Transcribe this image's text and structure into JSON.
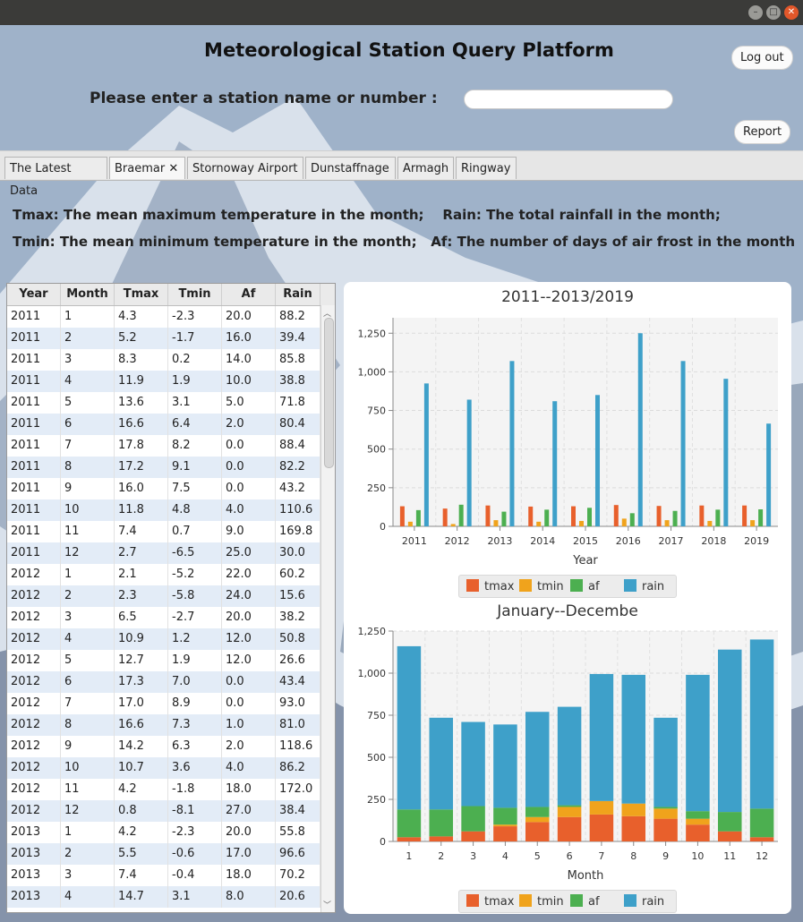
{
  "window": {
    "buttons": [
      "minimize",
      "maximize",
      "close"
    ]
  },
  "header": {
    "title": "Meteorological Station Query Platform",
    "prompt": "Please enter a station name or number :",
    "search_value": "",
    "logout_label": "Log out",
    "report_label": "Report"
  },
  "tabs": [
    {
      "label": "The Latest Data"
    },
    {
      "label": "Braemar",
      "active": true,
      "close": "✕"
    },
    {
      "label": "Stornoway Airport"
    },
    {
      "label": "Dunstaffnage"
    },
    {
      "label": "Armagh"
    },
    {
      "label": "Ringway"
    }
  ],
  "definitions": {
    "line1": "Tmax: The mean maximum temperature in the month;    Rain: The total rainfall in the month;",
    "line2": "Tmin: The mean minimum temperature in the month;   Af: The number of days of air frost in the month"
  },
  "table": {
    "columns": [
      "Year",
      "Month",
      "Tmax",
      "Tmin",
      "Af",
      "Rain"
    ],
    "rows": [
      [
        "2011",
        "1",
        "4.3",
        "-2.3",
        "20.0",
        "88.2"
      ],
      [
        "2011",
        "2",
        "5.2",
        "-1.7",
        "16.0",
        "39.4"
      ],
      [
        "2011",
        "3",
        "8.3",
        "0.2",
        "14.0",
        "85.8"
      ],
      [
        "2011",
        "4",
        "11.9",
        "1.9",
        "10.0",
        "38.8"
      ],
      [
        "2011",
        "5",
        "13.6",
        "3.1",
        "5.0",
        "71.8"
      ],
      [
        "2011",
        "6",
        "16.6",
        "6.4",
        "2.0",
        "80.4"
      ],
      [
        "2011",
        "7",
        "17.8",
        "8.2",
        "0.0",
        "88.4"
      ],
      [
        "2011",
        "8",
        "17.2",
        "9.1",
        "0.0",
        "82.2"
      ],
      [
        "2011",
        "9",
        "16.0",
        "7.5",
        "0.0",
        "43.2"
      ],
      [
        "2011",
        "10",
        "11.8",
        "4.8",
        "4.0",
        "110.6"
      ],
      [
        "2011",
        "11",
        "7.4",
        "0.7",
        "9.0",
        "169.8"
      ],
      [
        "2011",
        "12",
        "2.7",
        "-6.5",
        "25.0",
        "30.0"
      ],
      [
        "2012",
        "1",
        "2.1",
        "-5.2",
        "22.0",
        "60.2"
      ],
      [
        "2012",
        "2",
        "2.3",
        "-5.8",
        "24.0",
        "15.6"
      ],
      [
        "2012",
        "3",
        "6.5",
        "-2.7",
        "20.0",
        "38.2"
      ],
      [
        "2012",
        "4",
        "10.9",
        "1.2",
        "12.0",
        "50.8"
      ],
      [
        "2012",
        "5",
        "12.7",
        "1.9",
        "12.0",
        "26.6"
      ],
      [
        "2012",
        "6",
        "17.3",
        "7.0",
        "0.0",
        "43.4"
      ],
      [
        "2012",
        "7",
        "17.0",
        "8.9",
        "0.0",
        "93.0"
      ],
      [
        "2012",
        "8",
        "16.6",
        "7.3",
        "1.0",
        "81.0"
      ],
      [
        "2012",
        "9",
        "14.2",
        "6.3",
        "2.0",
        "118.6"
      ],
      [
        "2012",
        "10",
        "10.7",
        "3.6",
        "4.0",
        "86.2"
      ],
      [
        "2012",
        "11",
        "4.2",
        "-1.8",
        "18.0",
        "172.0"
      ],
      [
        "2012",
        "12",
        "0.8",
        "-8.1",
        "27.0",
        "38.4"
      ],
      [
        "2013",
        "1",
        "4.2",
        "-2.3",
        "20.0",
        "55.8"
      ],
      [
        "2013",
        "2",
        "5.5",
        "-0.6",
        "17.0",
        "96.6"
      ],
      [
        "2013",
        "3",
        "7.4",
        "-0.4",
        "18.0",
        "70.2"
      ],
      [
        "2013",
        "4",
        "14.7",
        "3.1",
        "8.0",
        "20.6"
      ]
    ]
  },
  "chart_data": [
    {
      "type": "bar",
      "title": "2011--2013/2019",
      "xlabel": "Year",
      "ylabel": "",
      "categories": [
        "2011",
        "2012",
        "2013",
        "2014",
        "2015",
        "2016",
        "2017",
        "2018",
        "2019"
      ],
      "ylim": [
        0,
        1350
      ],
      "yticks": [
        0,
        250,
        500,
        750,
        1000,
        1250
      ],
      "ytick_labels": [
        "0",
        "250",
        "500",
        "750",
        "1,000",
        "1,250"
      ],
      "grid": true,
      "legend_position": "bottom",
      "series": [
        {
          "name": "tmax",
          "color": "#e8602c",
          "values": [
            130,
            115,
            135,
            128,
            130,
            138,
            132,
            135,
            135
          ]
        },
        {
          "name": "tmin",
          "color": "#f0a31c",
          "values": [
            30,
            15,
            40,
            30,
            35,
            50,
            40,
            35,
            40
          ]
        },
        {
          "name": "af",
          "color": "#4caf50",
          "values": [
            105,
            140,
            95,
            108,
            120,
            85,
            100,
            108,
            110
          ]
        },
        {
          "name": "rain",
          "color": "#3ea0c9",
          "values": [
            925,
            820,
            1070,
            810,
            850,
            1250,
            1070,
            955,
            665
          ]
        }
      ]
    },
    {
      "type": "bar",
      "stacked": true,
      "title": "January--Decembe",
      "xlabel": "Month",
      "ylabel": "",
      "categories": [
        "1",
        "2",
        "3",
        "4",
        "5",
        "6",
        "7",
        "8",
        "9",
        "10",
        "11",
        "12"
      ],
      "ylim": [
        0,
        1250
      ],
      "yticks": [
        0,
        250,
        500,
        750,
        1000,
        1250
      ],
      "ytick_labels": [
        "0",
        "250",
        "500",
        "750",
        "1,000",
        "1,250"
      ],
      "grid": true,
      "legend_position": "bottom",
      "series": [
        {
          "name": "tmax",
          "color": "#e8602c",
          "values": [
            25,
            30,
            60,
            90,
            115,
            145,
            160,
            150,
            135,
            100,
            60,
            25
          ]
        },
        {
          "name": "tmin",
          "color": "#f0a31c",
          "values": [
            0,
            0,
            0,
            10,
            30,
            60,
            80,
            75,
            60,
            35,
            0,
            0
          ]
        },
        {
          "name": "af",
          "color": "#4caf50",
          "values": [
            165,
            160,
            150,
            100,
            60,
            10,
            0,
            0,
            10,
            45,
            115,
            170
          ]
        },
        {
          "name": "rain",
          "color": "#3ea0c9",
          "values": [
            970,
            545,
            500,
            495,
            565,
            585,
            755,
            765,
            530,
            810,
            965,
            1005
          ]
        }
      ]
    }
  ]
}
